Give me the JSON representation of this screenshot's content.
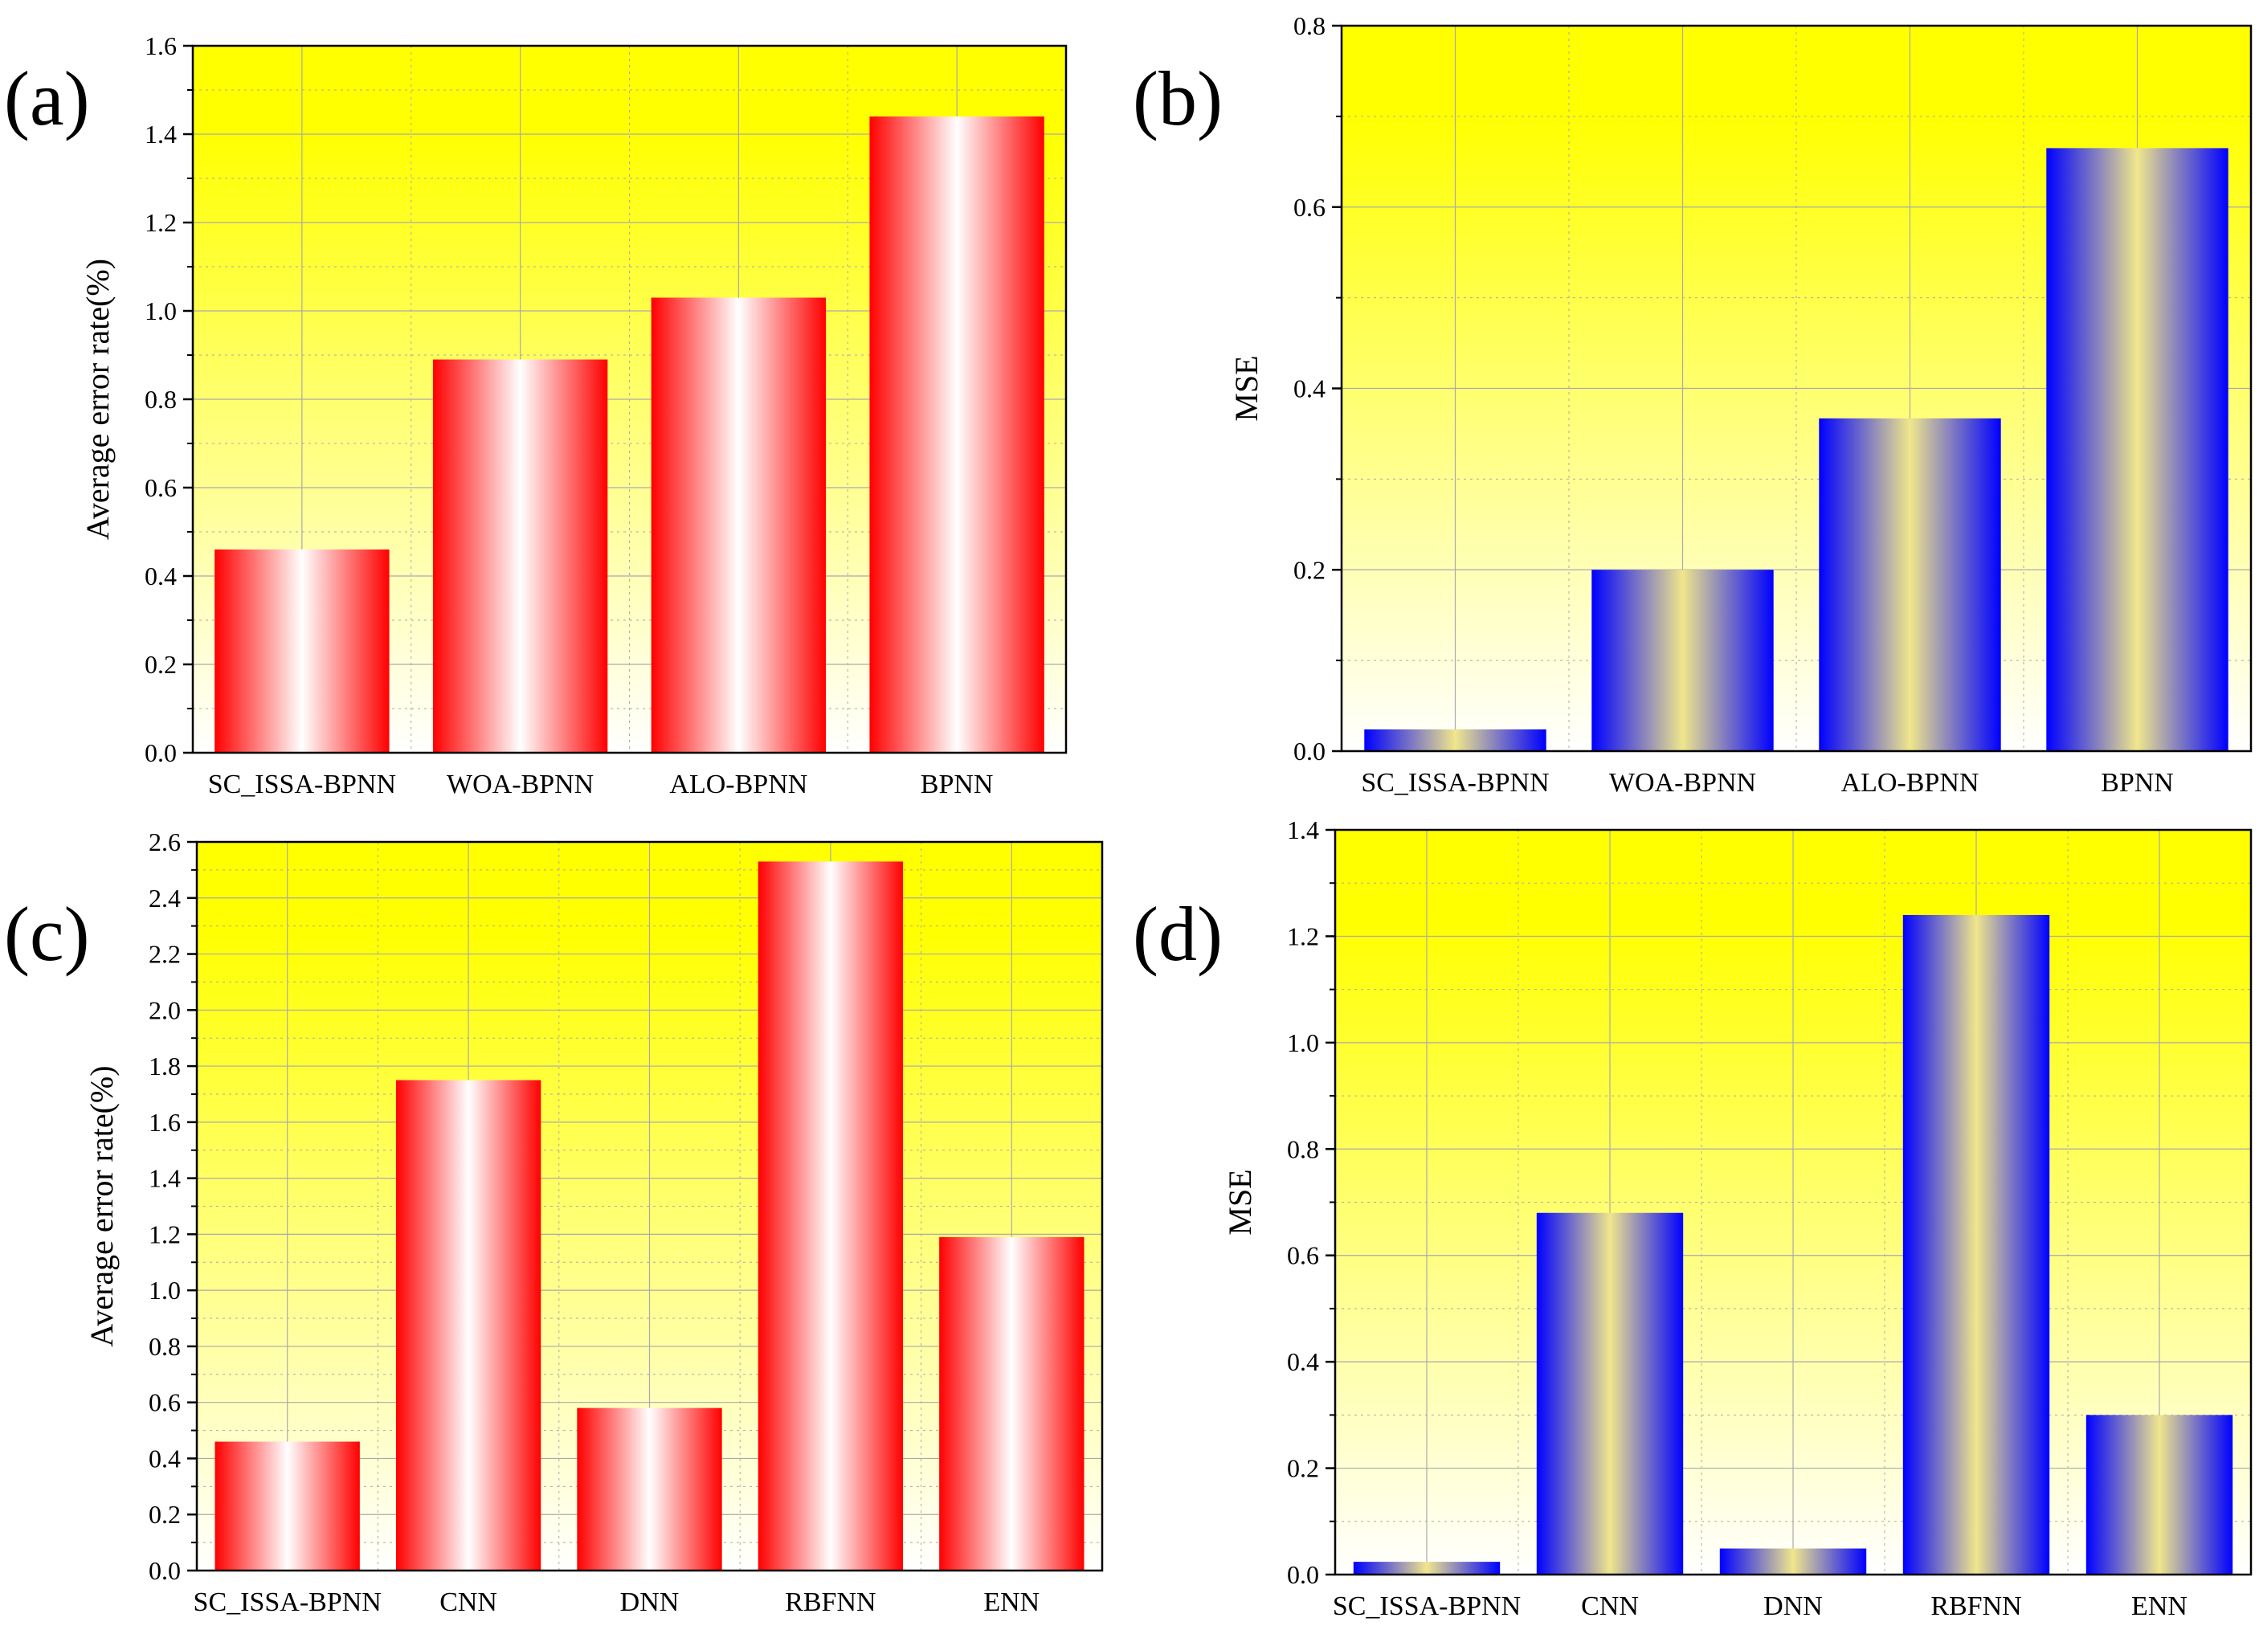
{
  "figure": {
    "colors": {
      "bg_top": "#ffff00",
      "bg_bottom": "#ffffff",
      "bar_red_edge": "#ff0000",
      "bar_red_center": "#ffffff",
      "bar_blue_edge": "#0000ff",
      "bar_blue_center": "#f0e68c",
      "grid": "#aaaaaa",
      "axis": "#000000"
    }
  },
  "chart_data": [
    {
      "panel": "(a)",
      "type": "bar",
      "title": "",
      "xlabel": "",
      "ylabel": "Average error rate(%)",
      "categories": [
        "SC_ISSA-BPNN",
        "WOA-BPNN",
        "ALO-BPNN",
        "BPNN"
      ],
      "values": [
        0.46,
        0.89,
        1.03,
        1.44
      ],
      "ylim": [
        0,
        1.6
      ],
      "yticks": [
        0.0,
        0.2,
        0.4,
        0.6,
        0.8,
        1.0,
        1.2,
        1.4,
        1.6
      ],
      "ytick_labels": [
        "0.0",
        "0.2",
        "0.4",
        "0.6",
        "0.8",
        "1.0",
        "1.2",
        "1.4",
        "1.6"
      ],
      "grid": true,
      "bar_style": "red"
    },
    {
      "panel": "(b)",
      "type": "bar",
      "title": "",
      "xlabel": "",
      "ylabel": "MSE",
      "categories": [
        "SC_ISSA-BPNN",
        "WOA-BPNN",
        "ALO-BPNN",
        "BPNN"
      ],
      "values": [
        0.024,
        0.2,
        0.367,
        0.665
      ],
      "ylim": [
        0,
        0.8
      ],
      "yticks": [
        0.0,
        0.2,
        0.4,
        0.6,
        0.8
      ],
      "ytick_labels": [
        "0.0",
        "0.2",
        "0.4",
        "0.6",
        "0.8"
      ],
      "grid": true,
      "bar_style": "blue"
    },
    {
      "panel": "(c)",
      "type": "bar",
      "title": "",
      "xlabel": "",
      "ylabel": "Average error rate(%)",
      "categories": [
        "SC_ISSA-BPNN",
        "CNN",
        "DNN",
        "RBFNN",
        "ENN"
      ],
      "values": [
        0.46,
        1.75,
        0.58,
        2.53,
        1.19
      ],
      "ylim": [
        0,
        2.6
      ],
      "yticks": [
        0.0,
        0.2,
        0.4,
        0.6,
        0.8,
        1.0,
        1.2,
        1.4,
        1.6,
        1.8,
        2.0,
        2.2,
        2.4,
        2.6
      ],
      "ytick_labels": [
        "0.0",
        "0.2",
        "0.4",
        "0.6",
        "0.8",
        "1.0",
        "1.2",
        "1.4",
        "1.6",
        "1.8",
        "2.0",
        "2.2",
        "2.4",
        "2.6"
      ],
      "grid": true,
      "bar_style": "red"
    },
    {
      "panel": "(d)",
      "type": "bar",
      "title": "",
      "xlabel": "",
      "ylabel": "MSE",
      "categories": [
        "SC_ISSA-BPNN",
        "CNN",
        "DNN",
        "RBFNN",
        "ENN"
      ],
      "values": [
        0.024,
        0.68,
        0.049,
        1.24,
        0.3
      ],
      "ylim": [
        0,
        1.4
      ],
      "yticks": [
        0.0,
        0.2,
        0.4,
        0.6,
        0.8,
        1.0,
        1.2,
        1.4
      ],
      "ytick_labels": [
        "0.0",
        "0.2",
        "0.4",
        "0.6",
        "0.8",
        "1.0",
        "1.2",
        "1.4"
      ],
      "grid": true,
      "bar_style": "blue"
    }
  ]
}
